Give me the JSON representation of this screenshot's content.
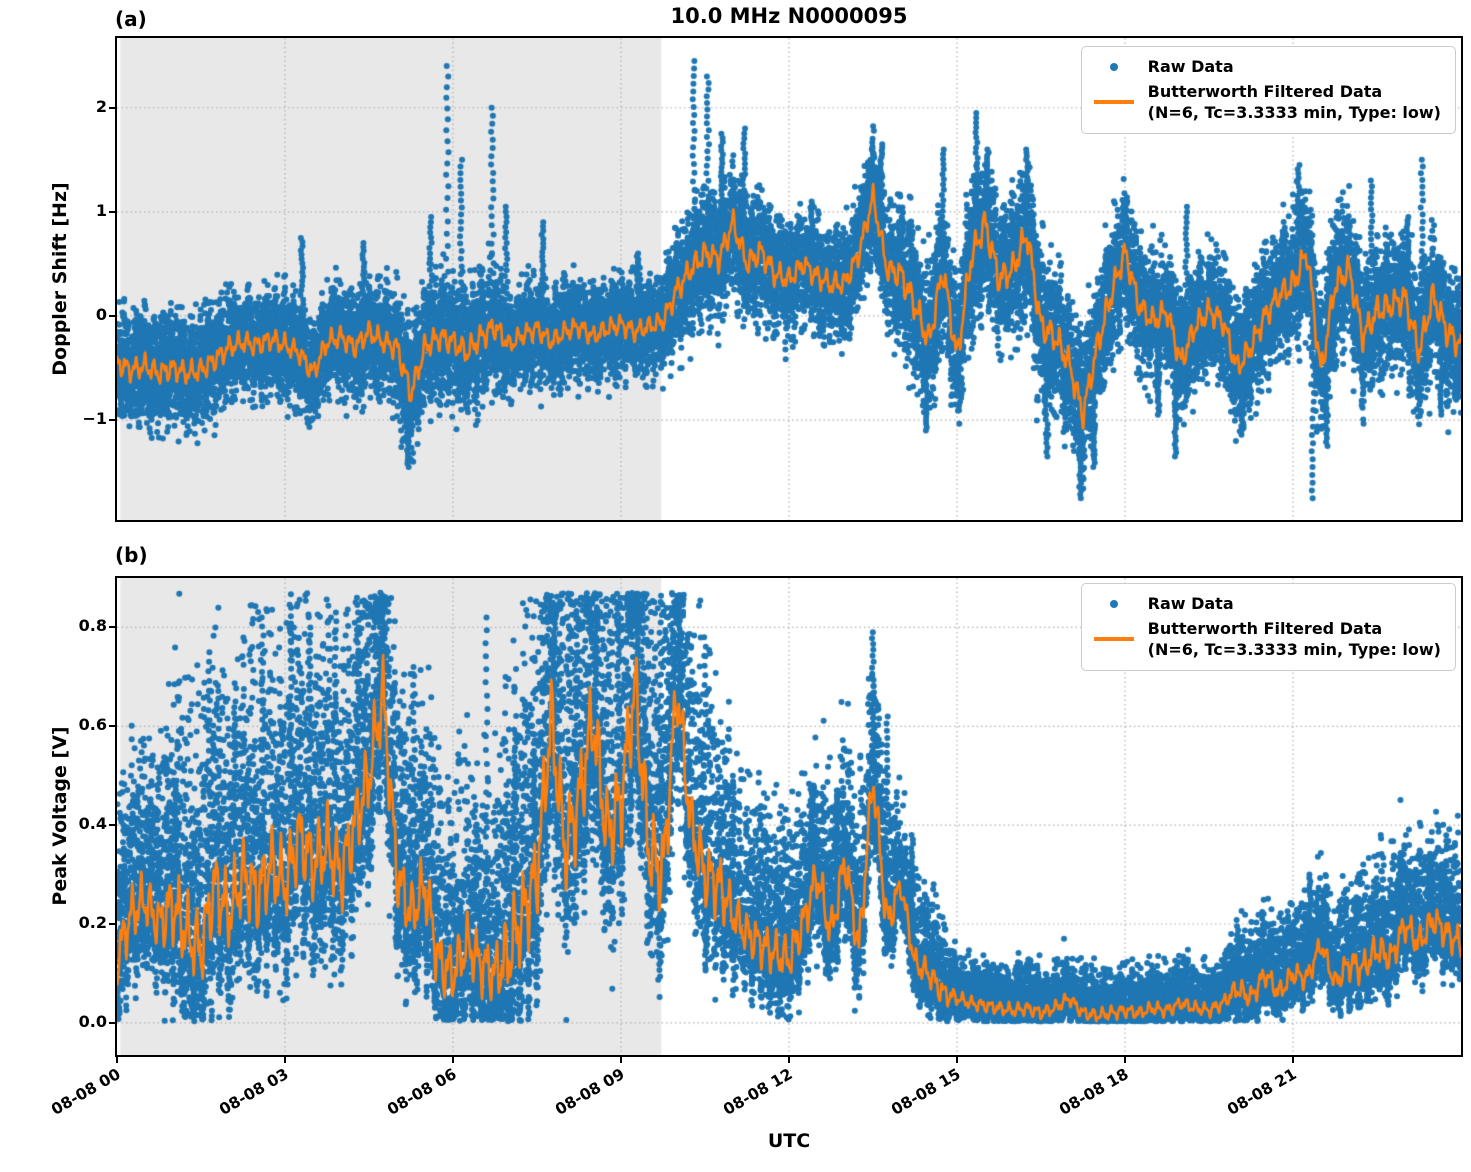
{
  "title": "10.0 MHz N0000095",
  "axis": {
    "utc_label": "UTC"
  },
  "legend": {
    "raw_label": "Raw Data",
    "filtered_label": "Butterworth Filtered Data",
    "filtered_sublabel": "(N=6, Tc=3.3333 min, Type: low)"
  },
  "colors": {
    "raw": "#1f77b4",
    "filtered": "#ff7f0e",
    "shade": "#e8e8e8",
    "grid": "#b0b0b0"
  },
  "chart_data": [
    {
      "type": "scatter",
      "panel_label": "(a)",
      "ylabel": "Doppler Shift [Hz]",
      "ylim": [
        -1.96,
        2.67
      ],
      "ytick_values": [
        2,
        1,
        0,
        -1
      ],
      "ytick_labels": [
        "2",
        "1",
        "0",
        "−1"
      ],
      "xlim_hours": [
        0,
        24
      ],
      "xtick_hours": [
        0,
        3,
        6,
        9,
        12,
        15,
        18,
        21
      ],
      "xtick_labels": [
        "08-08 00",
        "08-08 03",
        "08-08 06",
        "08-08 09",
        "08-08 12",
        "08-08 15",
        "08-08 18",
        "08-08 21"
      ],
      "grid": true,
      "shaded_region": {
        "x_start_hours": 0.06,
        "x_end_hours": 9.72,
        "color": "#e8e8e8"
      },
      "series": [
        {
          "name": "Raw Data",
          "type": "scatter",
          "color": "#1f77b4",
          "marker_radius": 3,
          "count": 24000,
          "spread_up_factor": 1.0,
          "spread_down_factor": 1.0,
          "floor": -1.8,
          "cap": 2.47,
          "x_step_hours": 0.25,
          "spread": [
            0.38,
            0.38,
            0.38,
            0.38,
            0.38,
            0.38,
            0.38,
            0.38,
            0.36,
            0.36,
            0.36,
            0.36,
            0.36,
            0.36,
            0.36,
            0.36,
            0.36,
            0.36,
            0.36,
            0.36,
            0.42,
            0.42,
            0.42,
            0.42,
            0.42,
            0.42,
            0.42,
            0.42,
            0.33,
            0.33,
            0.33,
            0.33,
            0.33,
            0.33,
            0.33,
            0.33,
            0.33,
            0.33,
            0.33,
            0.33,
            0.42,
            0.42,
            0.42,
            0.42,
            0.42,
            0.42,
            0.42,
            0.42,
            0.38,
            0.38,
            0.38,
            0.38,
            0.38,
            0.38,
            0.38,
            0.38,
            0.5,
            0.5,
            0.5,
            0.5,
            0.5,
            0.5,
            0.5,
            0.5,
            0.5,
            0.5,
            0.5,
            0.5,
            0.48,
            0.48,
            0.48,
            0.48,
            0.42,
            0.42,
            0.42,
            0.42,
            0.42,
            0.42,
            0.42,
            0.42,
            0.42,
            0.42,
            0.42,
            0.42,
            0.48,
            0.48,
            0.48,
            0.48,
            0.48,
            0.48,
            0.48,
            0.48,
            0.48,
            0.48,
            0.48,
            0.48,
            0.45
          ],
          "outlier_columns": [
            [
              3.3,
              0.75
            ],
            [
              4.4,
              0.7
            ],
            [
              5.2,
              -1.45
            ],
            [
              5.6,
              0.95
            ],
            [
              5.9,
              2.4
            ],
            [
              6.15,
              1.5
            ],
            [
              6.7,
              2.0
            ],
            [
              6.95,
              1.05
            ],
            [
              7.6,
              0.9
            ],
            [
              9.3,
              0.6
            ],
            [
              10.3,
              2.45
            ],
            [
              10.55,
              2.3
            ],
            [
              10.8,
              1.75
            ],
            [
              11.2,
              1.8
            ],
            [
              12.4,
              1.1
            ],
            [
              13.45,
              1.5
            ],
            [
              13.65,
              1.65
            ],
            [
              14.45,
              -1.1
            ],
            [
              14.75,
              1.6
            ],
            [
              15.35,
              1.95
            ],
            [
              15.55,
              1.6
            ],
            [
              16.25,
              1.6
            ],
            [
              16.6,
              -1.35
            ],
            [
              17.2,
              -1.75
            ],
            [
              17.45,
              -1.45
            ],
            [
              18.6,
              -0.95
            ],
            [
              18.9,
              -1.35
            ],
            [
              19.1,
              1.05
            ],
            [
              20.1,
              -1.1
            ],
            [
              21.1,
              1.45
            ],
            [
              21.35,
              -1.75
            ],
            [
              21.6,
              -1.25
            ],
            [
              22.4,
              1.3
            ],
            [
              23.05,
              0.95
            ],
            [
              23.3,
              1.5
            ],
            [
              23.65,
              -0.95
            ]
          ]
        },
        {
          "name": "Butterworth Filtered Data (N=6, Tc=3.3333 min, Type: low)",
          "type": "line",
          "color": "#ff7f0e",
          "width": 2.6,
          "x_step_hours": 0.25,
          "wiggle_factor": 0.35,
          "values": [
            -0.45,
            -0.52,
            -0.48,
            -0.55,
            -0.5,
            -0.55,
            -0.52,
            -0.42,
            -0.3,
            -0.25,
            -0.28,
            -0.22,
            -0.28,
            -0.35,
            -0.55,
            -0.25,
            -0.2,
            -0.3,
            -0.15,
            -0.25,
            -0.3,
            -0.75,
            -0.3,
            -0.2,
            -0.25,
            -0.35,
            -0.2,
            -0.1,
            -0.28,
            -0.18,
            -0.12,
            -0.25,
            -0.15,
            -0.1,
            -0.2,
            -0.12,
            -0.08,
            -0.15,
            -0.1,
            -0.05,
            0.25,
            0.45,
            0.6,
            0.55,
            0.9,
            0.5,
            0.62,
            0.4,
            0.35,
            0.5,
            0.38,
            0.3,
            0.32,
            0.6,
            1.15,
            0.45,
            0.4,
            0.1,
            -0.25,
            0.45,
            -0.4,
            0.55,
            0.9,
            0.35,
            0.45,
            0.8,
            -0.1,
            -0.2,
            -0.45,
            -0.95,
            -0.3,
            0.2,
            0.62,
            0.1,
            -0.05,
            0.05,
            -0.45,
            -0.1,
            0.05,
            -0.05,
            -0.5,
            -0.3,
            0.0,
            0.2,
            0.3,
            0.62,
            -0.55,
            0.3,
            0.45,
            -0.2,
            0.05,
            0.1,
            0.18,
            -0.35,
            0.2,
            -0.15,
            -0.28
          ]
        }
      ]
    },
    {
      "type": "scatter",
      "panel_label": "(b)",
      "ylabel": "Peak Voltage [V]",
      "ylim": [
        -0.065,
        0.9
      ],
      "ytick_values": [
        0.8,
        0.6,
        0.4,
        0.2,
        0.0
      ],
      "ytick_labels": [
        "0.8",
        "0.6",
        "0.4",
        "0.2",
        "0.0"
      ],
      "xlim_hours": [
        0,
        24
      ],
      "xtick_hours": [
        0,
        3,
        6,
        9,
        12,
        15,
        18,
        21
      ],
      "xtick_labels": [
        "08-08 00",
        "08-08 03",
        "08-08 06",
        "08-08 09",
        "08-08 12",
        "08-08 15",
        "08-08 18",
        "08-08 21"
      ],
      "grid": true,
      "shaded_region": {
        "x_start_hours": 0.06,
        "x_end_hours": 9.72,
        "color": "#e8e8e8"
      },
      "series": [
        {
          "name": "Raw Data",
          "type": "scatter",
          "color": "#1f77b4",
          "marker_radius": 3,
          "count": 24000,
          "spread_up_factor": 2.0,
          "spread_down_factor": 0.75,
          "floor": 0.003,
          "cap": 0.87,
          "x_step_hours": 0.25,
          "spread": [
            0.12,
            0.12,
            0.12,
            0.12,
            0.17,
            0.17,
            0.17,
            0.17,
            0.17,
            0.17,
            0.17,
            0.17,
            0.17,
            0.17,
            0.17,
            0.17,
            0.17,
            0.17,
            0.17,
            0.17,
            0.14,
            0.14,
            0.14,
            0.14,
            0.13,
            0.13,
            0.13,
            0.13,
            0.2,
            0.2,
            0.2,
            0.2,
            0.2,
            0.2,
            0.2,
            0.2,
            0.2,
            0.2,
            0.2,
            0.2,
            0.15,
            0.15,
            0.15,
            0.15,
            0.1,
            0.1,
            0.1,
            0.1,
            0.1,
            0.1,
            0.1,
            0.1,
            0.1,
            0.1,
            0.1,
            0.1,
            0.06,
            0.06,
            0.06,
            0.06,
            0.03,
            0.03,
            0.03,
            0.03,
            0.03,
            0.03,
            0.03,
            0.03,
            0.03,
            0.03,
            0.03,
            0.03,
            0.03,
            0.03,
            0.03,
            0.03,
            0.03,
            0.03,
            0.03,
            0.03,
            0.05,
            0.05,
            0.05,
            0.05,
            0.05,
            0.05,
            0.05,
            0.05,
            0.07,
            0.07,
            0.07,
            0.07,
            0.07,
            0.07,
            0.07,
            0.07,
            0.07
          ],
          "outlier_columns": [
            [
              1.05,
              0.49
            ],
            [
              1.65,
              0.75
            ],
            [
              2.1,
              0.65
            ],
            [
              2.6,
              0.82
            ],
            [
              3.1,
              0.84
            ],
            [
              3.45,
              0.8
            ],
            [
              3.9,
              0.83
            ],
            [
              4.3,
              0.86
            ],
            [
              4.7,
              0.87
            ],
            [
              5.3,
              0.72
            ],
            [
              6.6,
              0.82
            ],
            [
              7.1,
              0.55
            ],
            [
              7.45,
              0.55
            ],
            [
              7.8,
              0.79
            ],
            [
              8.2,
              0.85
            ],
            [
              8.55,
              0.8
            ],
            [
              8.95,
              0.84
            ],
            [
              9.3,
              0.84
            ],
            [
              9.7,
              0.81
            ],
            [
              10.05,
              0.83
            ],
            [
              10.5,
              0.78
            ],
            [
              11.0,
              0.5
            ],
            [
              12.4,
              0.48
            ],
            [
              12.85,
              0.47
            ],
            [
              13.5,
              0.79
            ],
            [
              13.75,
              0.62
            ],
            [
              14.2,
              0.38
            ],
            [
              21.3,
              0.3
            ],
            [
              22.9,
              0.26
            ],
            [
              23.45,
              0.33
            ]
          ]
        },
        {
          "name": "Butterworth Filtered Data (N=6, Tc=3.3333 min, Type: low)",
          "type": "line",
          "color": "#ff7f0e",
          "width": 2.6,
          "x_step_hours": 0.25,
          "wiggle_factor": 0.55,
          "values": [
            0.13,
            0.22,
            0.25,
            0.2,
            0.24,
            0.18,
            0.15,
            0.28,
            0.22,
            0.3,
            0.26,
            0.32,
            0.28,
            0.38,
            0.32,
            0.36,
            0.3,
            0.4,
            0.5,
            0.67,
            0.3,
            0.22,
            0.28,
            0.12,
            0.1,
            0.16,
            0.12,
            0.1,
            0.14,
            0.22,
            0.3,
            0.62,
            0.35,
            0.45,
            0.62,
            0.38,
            0.45,
            0.68,
            0.35,
            0.3,
            0.68,
            0.4,
            0.3,
            0.28,
            0.22,
            0.18,
            0.16,
            0.14,
            0.13,
            0.2,
            0.3,
            0.18,
            0.33,
            0.15,
            0.5,
            0.2,
            0.28,
            0.12,
            0.1,
            0.06,
            0.05,
            0.04,
            0.035,
            0.03,
            0.025,
            0.03,
            0.02,
            0.03,
            0.05,
            0.02,
            0.015,
            0.02,
            0.025,
            0.02,
            0.03,
            0.025,
            0.04,
            0.03,
            0.025,
            0.04,
            0.07,
            0.05,
            0.1,
            0.06,
            0.1,
            0.09,
            0.16,
            0.08,
            0.12,
            0.11,
            0.15,
            0.13,
            0.2,
            0.16,
            0.21,
            0.18,
            0.16
          ]
        }
      ]
    }
  ]
}
